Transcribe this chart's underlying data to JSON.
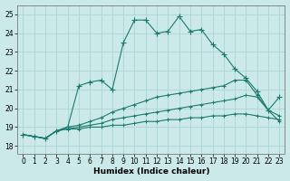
{
  "xlabel": "Humidex (Indice chaleur)",
  "xlim": [
    -0.5,
    23.5
  ],
  "ylim": [
    17.6,
    25.5
  ],
  "xticks": [
    0,
    1,
    2,
    3,
    4,
    5,
    6,
    7,
    8,
    9,
    10,
    11,
    12,
    13,
    14,
    15,
    16,
    17,
    18,
    19,
    20,
    21,
    22,
    23
  ],
  "yticks": [
    18,
    19,
    20,
    21,
    22,
    23,
    24,
    25
  ],
  "bg_color": "#cce9e9",
  "grid_color": "#aad4d4",
  "line_color": "#1a7a6e",
  "line1_x": [
    0,
    1,
    2,
    3,
    4,
    5,
    6,
    7,
    8,
    9,
    10,
    11,
    12,
    13,
    14,
    15,
    16,
    17,
    18,
    19,
    20,
    21,
    22,
    23
  ],
  "line1_y": [
    18.6,
    18.5,
    18.4,
    18.8,
    19.0,
    21.2,
    21.4,
    21.5,
    21.0,
    23.5,
    24.7,
    24.7,
    24.0,
    24.1,
    24.9,
    24.1,
    24.2,
    23.4,
    22.9,
    22.1,
    21.6,
    20.9,
    19.9,
    20.6
  ],
  "line2_x": [
    0,
    1,
    2,
    3,
    4,
    5,
    6,
    7,
    8,
    9,
    10,
    11,
    12,
    13,
    14,
    15,
    16,
    17,
    18,
    19,
    20,
    21,
    22,
    23
  ],
  "line2_y": [
    18.6,
    18.5,
    18.4,
    18.8,
    19.0,
    19.1,
    19.3,
    19.5,
    19.8,
    20.0,
    20.2,
    20.4,
    20.6,
    20.7,
    20.8,
    20.9,
    21.0,
    21.1,
    21.2,
    21.5,
    21.5,
    20.7,
    19.9,
    19.3
  ],
  "line3_x": [
    0,
    1,
    2,
    3,
    4,
    5,
    6,
    7,
    8,
    9,
    10,
    11,
    12,
    13,
    14,
    15,
    16,
    17,
    18,
    19,
    20,
    21,
    22,
    23
  ],
  "line3_y": [
    18.6,
    18.5,
    18.4,
    18.8,
    18.9,
    19.0,
    19.1,
    19.2,
    19.4,
    19.5,
    19.6,
    19.7,
    19.8,
    19.9,
    20.0,
    20.1,
    20.2,
    20.3,
    20.4,
    20.5,
    20.7,
    20.6,
    19.9,
    19.6
  ],
  "line4_x": [
    0,
    1,
    2,
    3,
    4,
    5,
    6,
    7,
    8,
    9,
    10,
    11,
    12,
    13,
    14,
    15,
    16,
    17,
    18,
    19,
    20,
    21,
    22,
    23
  ],
  "line4_y": [
    18.6,
    18.5,
    18.4,
    18.8,
    18.9,
    18.9,
    19.0,
    19.0,
    19.1,
    19.1,
    19.2,
    19.3,
    19.3,
    19.4,
    19.4,
    19.5,
    19.5,
    19.6,
    19.6,
    19.7,
    19.7,
    19.6,
    19.5,
    19.4
  ]
}
